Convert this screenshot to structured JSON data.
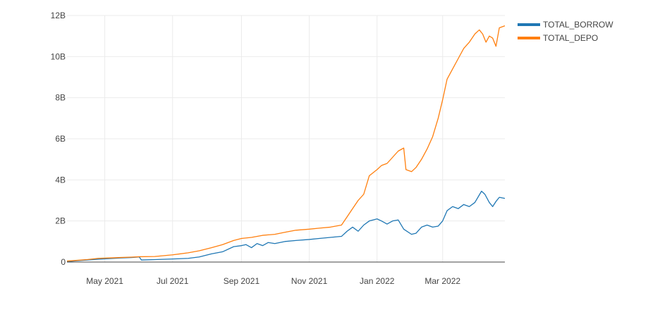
{
  "chart_data": {
    "type": "line",
    "title": "",
    "xlabel": "",
    "ylabel": "",
    "x_range": [
      "2021-03-28",
      "2022-04-26"
    ],
    "ylim": [
      0,
      12000000000
    ],
    "grid": true,
    "legend_placement": "top-right",
    "x_ticks": [
      {
        "date": "2021-05-01",
        "label": "May 2021"
      },
      {
        "date": "2021-07-01",
        "label": "Jul 2021"
      },
      {
        "date": "2021-09-01",
        "label": "Sep 2021"
      },
      {
        "date": "2021-11-01",
        "label": "Nov 2021"
      },
      {
        "date": "2022-01-01",
        "label": "Jan 2022"
      },
      {
        "date": "2022-03-01",
        "label": "Mar 2022"
      }
    ],
    "y_ticks": [
      {
        "value": 0,
        "label": "0"
      },
      {
        "value": 2000000000,
        "label": "2B"
      },
      {
        "value": 4000000000,
        "label": "4B"
      },
      {
        "value": 6000000000,
        "label": "6B"
      },
      {
        "value": 8000000000,
        "label": "8B"
      },
      {
        "value": 10000000000,
        "label": "10B"
      },
      {
        "value": 12000000000,
        "label": "12B"
      }
    ],
    "series": [
      {
        "name": "TOTAL_BORROW",
        "color": "#1f77b4",
        "points": [
          [
            "2021-03-28",
            20000000.0
          ],
          [
            "2021-04-05",
            60000000.0
          ],
          [
            "2021-04-15",
            100000000.0
          ],
          [
            "2021-04-25",
            140000000.0
          ],
          [
            "2021-05-05",
            170000000.0
          ],
          [
            "2021-05-15",
            200000000.0
          ],
          [
            "2021-05-25",
            220000000.0
          ],
          [
            "2021-06-01",
            250000000.0
          ],
          [
            "2021-06-03",
            100000000.0
          ],
          [
            "2021-06-15",
            120000000.0
          ],
          [
            "2021-07-01",
            150000000.0
          ],
          [
            "2021-07-15",
            180000000.0
          ],
          [
            "2021-07-25",
            250000000.0
          ],
          [
            "2021-08-05",
            400000000.0
          ],
          [
            "2021-08-15",
            500000000.0
          ],
          [
            "2021-08-25",
            750000000.0
          ],
          [
            "2021-09-01",
            800000000.0
          ],
          [
            "2021-09-05",
            850000000.0
          ],
          [
            "2021-09-10",
            700000000.0
          ],
          [
            "2021-09-15",
            900000000.0
          ],
          [
            "2021-09-20",
            800000000.0
          ],
          [
            "2021-09-25",
            950000000.0
          ],
          [
            "2021-10-01",
            900000000.0
          ],
          [
            "2021-10-10",
            1000000000.0
          ],
          [
            "2021-10-20",
            1050000000.0
          ],
          [
            "2021-11-01",
            1100000000.0
          ],
          [
            "2021-11-10",
            1150000000.0
          ],
          [
            "2021-11-20",
            1200000000.0
          ],
          [
            "2021-11-30",
            1250000000.0
          ],
          [
            "2021-12-05",
            1500000000.0
          ],
          [
            "2021-12-10",
            1700000000.0
          ],
          [
            "2021-12-15",
            1500000000.0
          ],
          [
            "2021-12-20",
            1800000000.0
          ],
          [
            "2021-12-25",
            2000000000.0
          ],
          [
            "2022-01-01",
            2100000000.0
          ],
          [
            "2022-01-05",
            2000000000.0
          ],
          [
            "2022-01-10",
            1850000000.0
          ],
          [
            "2022-01-15",
            2000000000.0
          ],
          [
            "2022-01-20",
            2050000000.0
          ],
          [
            "2022-01-25",
            1600000000.0
          ],
          [
            "2022-02-01",
            1350000000.0
          ],
          [
            "2022-02-05",
            1400000000.0
          ],
          [
            "2022-02-10",
            1700000000.0
          ],
          [
            "2022-02-15",
            1800000000.0
          ],
          [
            "2022-02-20",
            1700000000.0
          ],
          [
            "2022-02-25",
            1750000000.0
          ],
          [
            "2022-03-01",
            2000000000.0
          ],
          [
            "2022-03-05",
            2500000000.0
          ],
          [
            "2022-03-10",
            2700000000.0
          ],
          [
            "2022-03-15",
            2600000000.0
          ],
          [
            "2022-03-20",
            2800000000.0
          ],
          [
            "2022-03-25",
            2700000000.0
          ],
          [
            "2022-03-30",
            2900000000.0
          ],
          [
            "2022-04-05",
            3450000000.0
          ],
          [
            "2022-04-08",
            3300000000.0
          ],
          [
            "2022-04-12",
            2900000000.0
          ],
          [
            "2022-04-15",
            2700000000.0
          ],
          [
            "2022-04-18",
            2950000000.0
          ],
          [
            "2022-04-21",
            3150000000.0
          ],
          [
            "2022-04-26",
            3100000000.0
          ]
        ]
      },
      {
        "name": "TOTAL_DEPO",
        "color": "#ff7f0e",
        "points": [
          [
            "2021-03-28",
            50000000.0
          ],
          [
            "2021-04-05",
            80000000.0
          ],
          [
            "2021-04-15",
            120000000.0
          ],
          [
            "2021-04-25",
            180000000.0
          ],
          [
            "2021-05-05",
            200000000.0
          ],
          [
            "2021-05-15",
            220000000.0
          ],
          [
            "2021-05-25",
            240000000.0
          ],
          [
            "2021-06-01",
            260000000.0
          ],
          [
            "2021-06-15",
            270000000.0
          ],
          [
            "2021-07-01",
            350000000.0
          ],
          [
            "2021-07-15",
            450000000.0
          ],
          [
            "2021-07-25",
            550000000.0
          ],
          [
            "2021-08-05",
            700000000.0
          ],
          [
            "2021-08-15",
            850000000.0
          ],
          [
            "2021-08-25",
            1050000000.0
          ],
          [
            "2021-09-01",
            1150000000.0
          ],
          [
            "2021-09-10",
            1200000000.0
          ],
          [
            "2021-09-20",
            1300000000.0
          ],
          [
            "2021-10-01",
            1350000000.0
          ],
          [
            "2021-10-10",
            1450000000.0
          ],
          [
            "2021-10-20",
            1550000000.0
          ],
          [
            "2021-11-01",
            1600000000.0
          ],
          [
            "2021-11-10",
            1650000000.0
          ],
          [
            "2021-11-20",
            1700000000.0
          ],
          [
            "2021-11-30",
            1800000000.0
          ],
          [
            "2021-12-05",
            2200000000.0
          ],
          [
            "2021-12-10",
            2600000000.0
          ],
          [
            "2021-12-15",
            3000000000.0
          ],
          [
            "2021-12-20",
            3300000000.0
          ],
          [
            "2021-12-25",
            4200000000.0
          ],
          [
            "2022-01-01",
            4500000000.0
          ],
          [
            "2022-01-05",
            4700000000.0
          ],
          [
            "2022-01-10",
            4800000000.0
          ],
          [
            "2022-01-15",
            5100000000.0
          ],
          [
            "2022-01-20",
            5400000000.0
          ],
          [
            "2022-01-25",
            5550000000.0
          ],
          [
            "2022-01-27",
            4500000000.0
          ],
          [
            "2022-02-01",
            4400000000.0
          ],
          [
            "2022-02-05",
            4600000000.0
          ],
          [
            "2022-02-10",
            5000000000.0
          ],
          [
            "2022-02-15",
            5500000000.0
          ],
          [
            "2022-02-20",
            6100000000.0
          ],
          [
            "2022-02-25",
            7000000000.0
          ],
          [
            "2022-03-01",
            7900000000.0
          ],
          [
            "2022-03-05",
            8900000000.0
          ],
          [
            "2022-03-10",
            9400000000.0
          ],
          [
            "2022-03-15",
            9900000000.0
          ],
          [
            "2022-03-20",
            10400000000.0
          ],
          [
            "2022-03-25",
            10700000000.0
          ],
          [
            "2022-03-30",
            11100000000.0
          ],
          [
            "2022-04-03",
            11300000000.0
          ],
          [
            "2022-04-06",
            11100000000.0
          ],
          [
            "2022-04-09",
            10700000000.0
          ],
          [
            "2022-04-12",
            11000000000.0
          ],
          [
            "2022-04-15",
            10900000000.0
          ],
          [
            "2022-04-18",
            10500000000.0
          ],
          [
            "2022-04-21",
            11400000000.0
          ],
          [
            "2022-04-26",
            11500000000.0
          ]
        ]
      }
    ]
  }
}
